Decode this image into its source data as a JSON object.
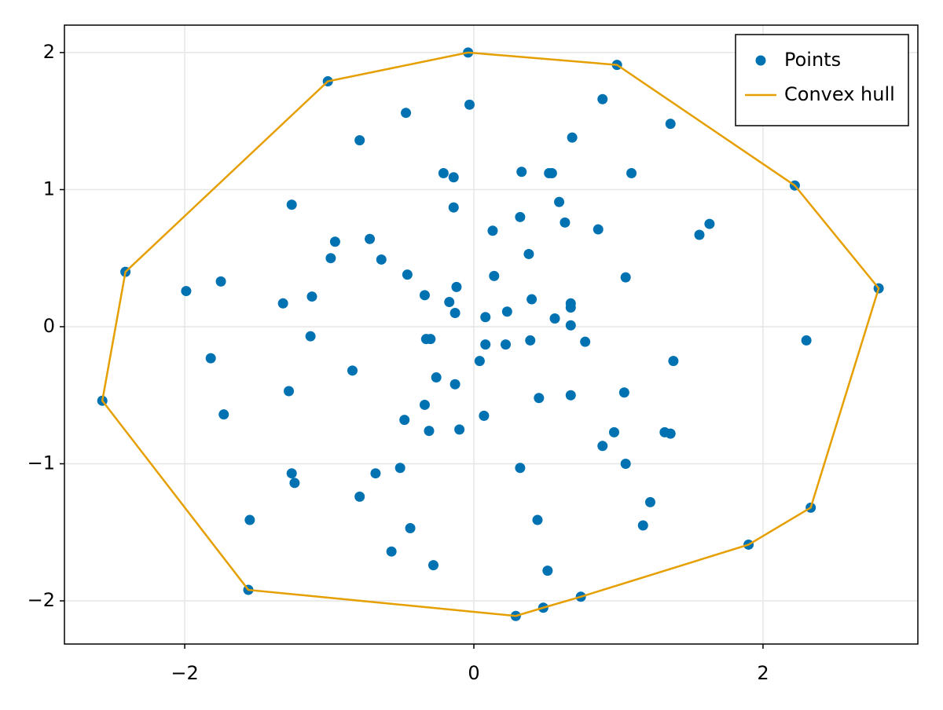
{
  "chart_data": {
    "type": "scatter",
    "xlim": [
      -2.832,
      3.071
    ],
    "ylim": [
      -2.315,
      2.2
    ],
    "xticks": [
      {
        "value": -2,
        "label": "−2"
      },
      0,
      2
    ],
    "yticks": [
      {
        "value": -2,
        "label": "−2"
      },
      {
        "value": -1,
        "label": "−1"
      },
      0,
      1,
      2
    ],
    "grid": true,
    "legend": "upper right",
    "series": [
      {
        "name": "Points",
        "type": "scatter",
        "color": "#0072b2",
        "x": [
          -0.04,
          0.99,
          -1.01,
          -0.03,
          0.89,
          -0.47,
          1.36,
          -0.79,
          0.68,
          -0.21,
          -0.14,
          0.33,
          0.52,
          0.54,
          1.09,
          2.22,
          -1.26,
          -0.14,
          0.59,
          0.32,
          0.63,
          0.13,
          0.86,
          1.63,
          1.56,
          -0.96,
          -0.72,
          0.38,
          -0.99,
          -0.64,
          -2.41,
          -0.46,
          -1.75,
          0.14,
          1.05,
          -0.12,
          2.8,
          -1.99,
          -1.12,
          -0.34,
          0.4,
          -1.32,
          -0.17,
          0.67,
          0.67,
          -0.13,
          0.23,
          0.08,
          0.56,
          0.67,
          -1.13,
          -0.33,
          -0.3,
          0.08,
          0.22,
          0.39,
          0.77,
          2.3,
          -1.82,
          0.04,
          1.38,
          -0.84,
          -0.26,
          -0.13,
          -1.28,
          1.04,
          -2.57,
          0.45,
          0.67,
          -0.34,
          0.07,
          -1.73,
          -0.48,
          -0.31,
          -0.1,
          0.97,
          1.32,
          1.36,
          0.89,
          0.32,
          1.05,
          -0.51,
          -1.26,
          -0.68,
          -1.24,
          -0.79,
          1.22,
          2.33,
          -1.55,
          0.44,
          1.17,
          -0.44,
          1.9,
          -0.57,
          -0.28,
          0.51,
          -1.56,
          0.74,
          0.48,
          0.29
        ],
        "y": [
          2.0,
          1.91,
          1.79,
          1.62,
          1.66,
          1.56,
          1.48,
          1.36,
          1.38,
          1.12,
          1.09,
          1.13,
          1.12,
          1.12,
          1.12,
          1.03,
          0.89,
          0.87,
          0.91,
          0.8,
          0.76,
          0.7,
          0.71,
          0.75,
          0.67,
          0.62,
          0.64,
          0.53,
          0.5,
          0.49,
          0.4,
          0.38,
          0.33,
          0.37,
          0.36,
          0.29,
          0.28,
          0.26,
          0.22,
          0.23,
          0.2,
          0.17,
          0.18,
          0.17,
          0.14,
          0.1,
          0.11,
          0.07,
          0.06,
          0.01,
          -0.07,
          -0.09,
          -0.09,
          -0.13,
          -0.13,
          -0.1,
          -0.11,
          -0.1,
          -0.23,
          -0.25,
          -0.25,
          -0.32,
          -0.37,
          -0.42,
          -0.47,
          -0.48,
          -0.54,
          -0.52,
          -0.5,
          -0.57,
          -0.65,
          -0.64,
          -0.68,
          -0.76,
          -0.75,
          -0.77,
          -0.77,
          -0.78,
          -0.87,
          -1.03,
          -1.0,
          -1.03,
          -1.07,
          -1.07,
          -1.14,
          -1.24,
          -1.28,
          -1.32,
          -1.41,
          -1.41,
          -1.45,
          -1.47,
          -1.59,
          -1.64,
          -1.74,
          -1.78,
          -1.92,
          -1.97,
          -2.05,
          -2.11
        ]
      },
      {
        "name": "Convex hull",
        "type": "line",
        "color": "#e69f00",
        "x": [
          -0.04,
          0.99,
          2.22,
          2.8,
          2.33,
          1.9,
          0.74,
          0.48,
          0.29,
          -1.56,
          -2.57,
          -2.41,
          -1.01,
          -0.04
        ],
        "y": [
          2.0,
          1.91,
          1.03,
          0.28,
          -1.32,
          -1.59,
          -1.97,
          -2.05,
          -2.11,
          -1.92,
          -0.54,
          0.4,
          1.79,
          2.0
        ]
      }
    ]
  }
}
